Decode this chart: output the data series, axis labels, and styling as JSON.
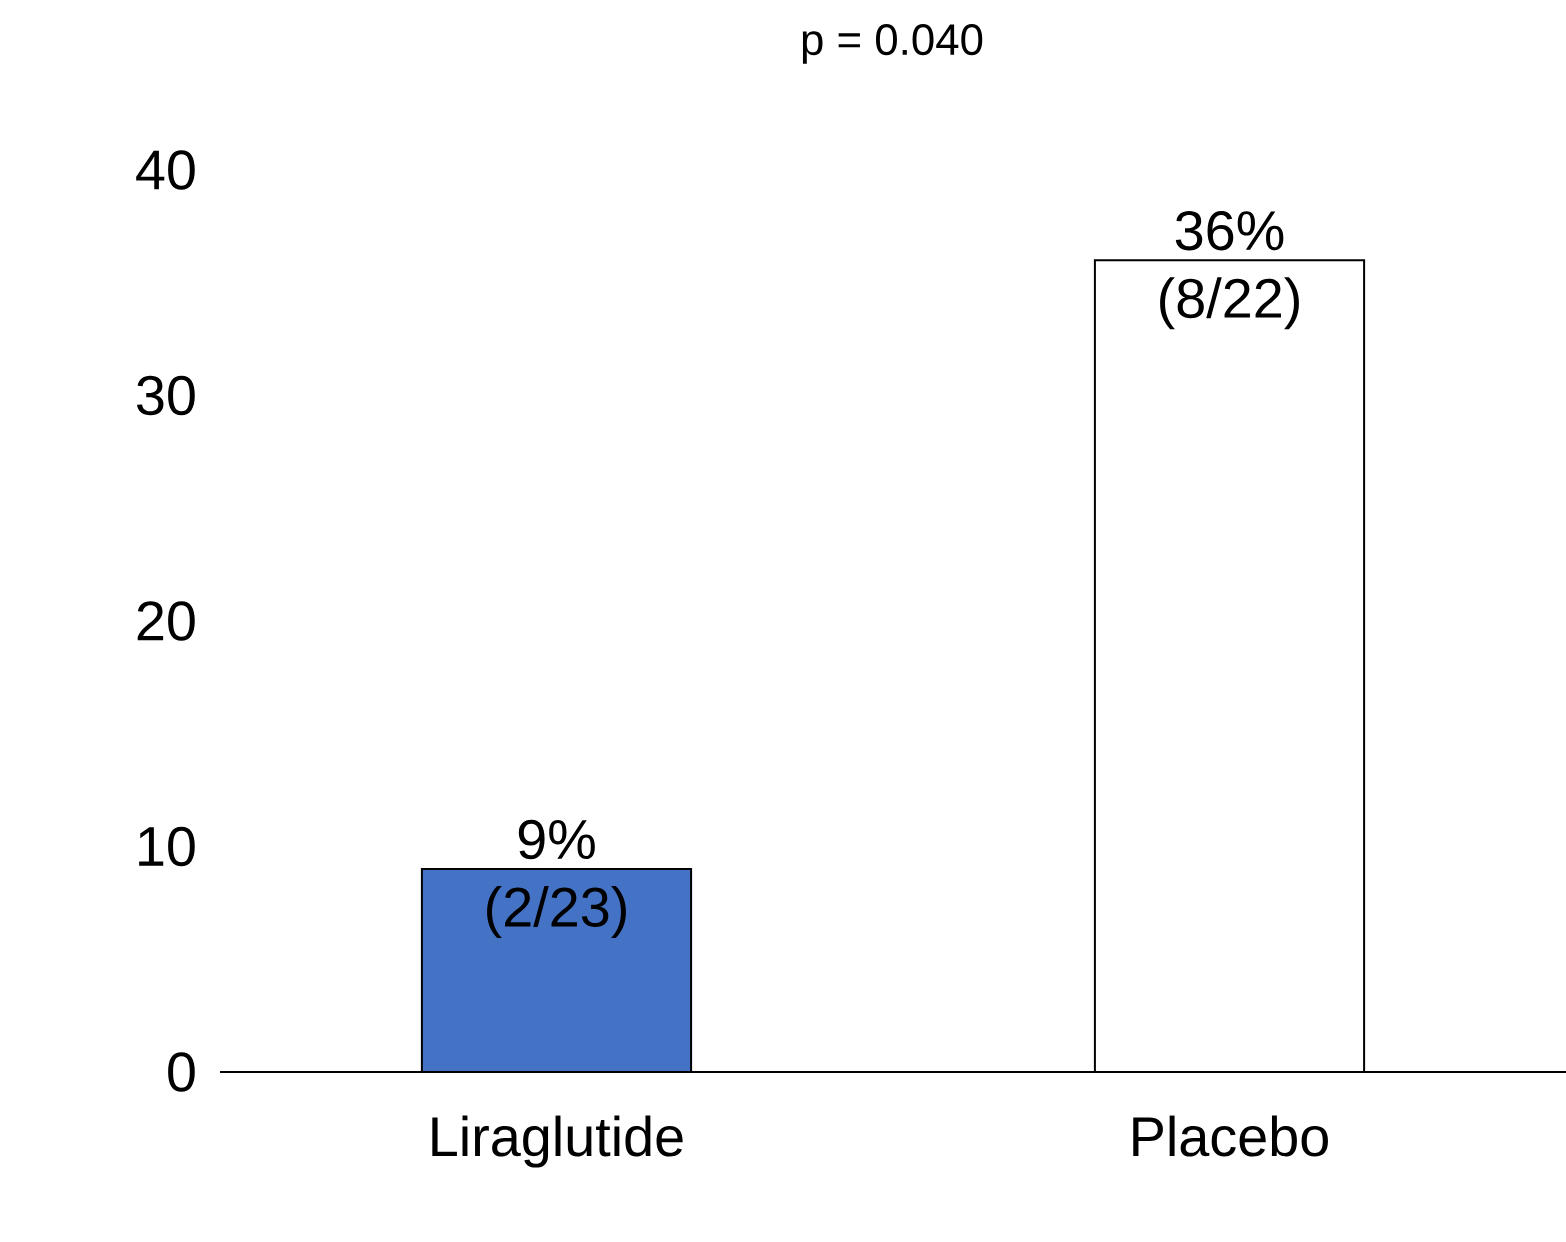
{
  "chart_data": {
    "type": "bar",
    "title": "p = 0.040",
    "categories": [
      "Liraglutide",
      "Placebo"
    ],
    "values": [
      9,
      36
    ],
    "colors": [
      "#4472c4",
      "#ffffff"
    ],
    "value_labels": [
      "9% (2/23)",
      "36% (8/22)"
    ],
    "ylim": [
      0,
      40
    ],
    "yticks": [
      0,
      10,
      20,
      30,
      40
    ],
    "grid": false
  }
}
